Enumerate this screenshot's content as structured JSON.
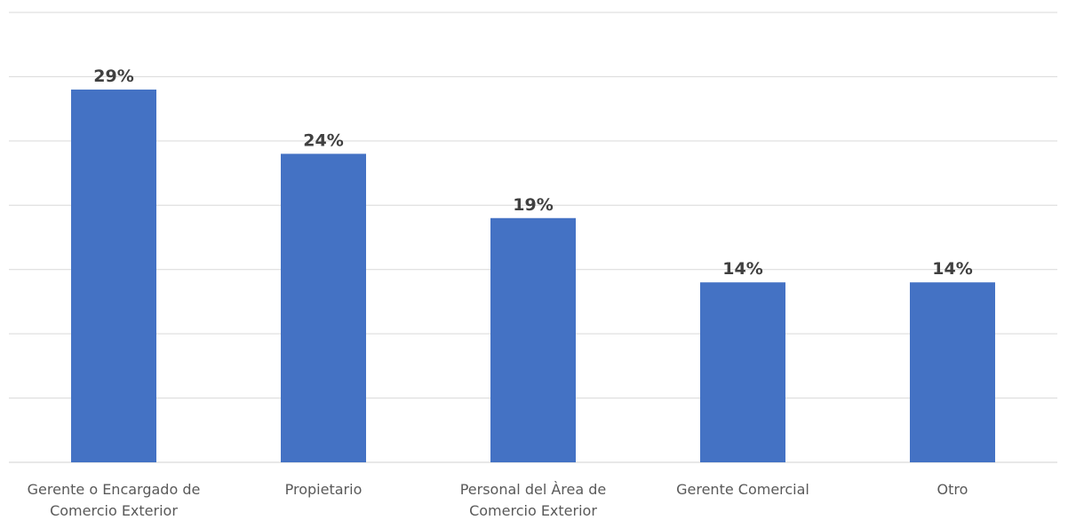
{
  "chart_data": {
    "type": "bar",
    "categories": [
      [
        "Gerente o Encargado de",
        "Comercio Exterior"
      ],
      [
        "Propietario"
      ],
      [
        "Personal del Àrea de",
        "Comercio Exterior"
      ],
      [
        "Gerente Comercial"
      ],
      [
        "Otro"
      ]
    ],
    "values": [
      29,
      24,
      19,
      14,
      14
    ],
    "data_labels": [
      "29%",
      "24%",
      "19%",
      "14%",
      "14%"
    ],
    "title": "",
    "xlabel": "",
    "ylabel": "",
    "ylim": [
      0,
      35
    ],
    "grid": true,
    "legend": "none",
    "colors": {
      "bar": "#4472c4",
      "grid": "#d9d9d9",
      "label": "#404040",
      "category": "#595959"
    }
  }
}
